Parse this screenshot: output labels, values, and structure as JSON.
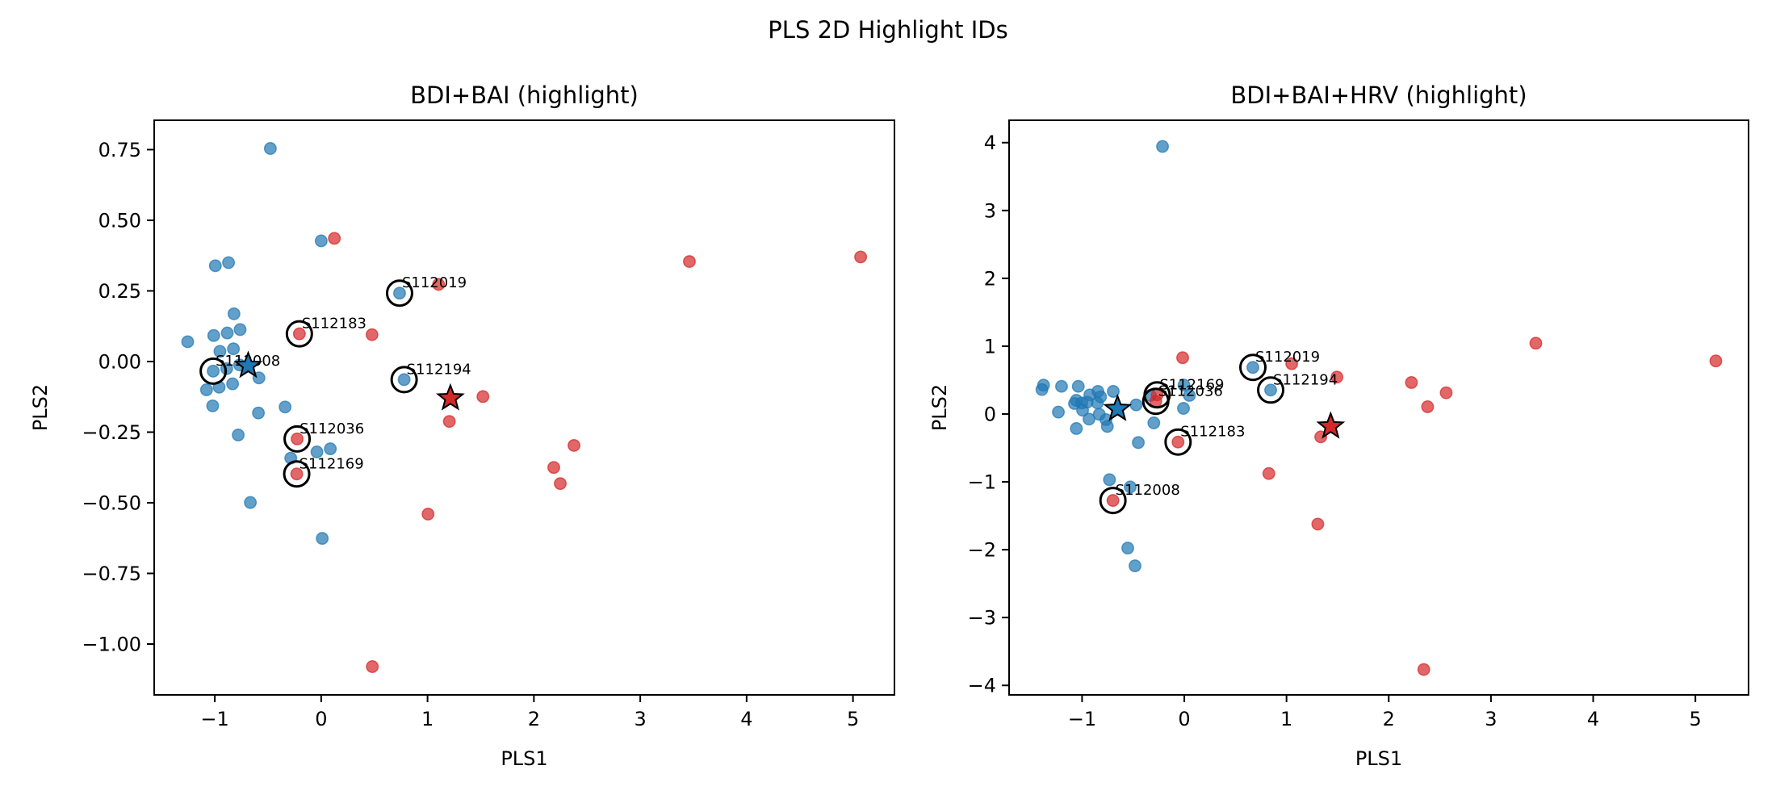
{
  "chart_data": {
    "suptitle": "PLS 2D Highlight IDs",
    "colors": {
      "group0": "#1f77b4",
      "group1": "#d62728",
      "highlight_ring": "#000000"
    },
    "panels": [
      {
        "type": "scatter",
        "title": "BDI+BAI (highlight)",
        "xlabel": "PLS1",
        "ylabel": "PLS2",
        "xlim": [
          -1.57,
          5.39
        ],
        "ylim": [
          -1.18,
          0.854
        ],
        "xticks": [
          -1,
          0,
          1,
          2,
          3,
          4,
          5
        ],
        "xtick_labels": [
          "−1",
          "0",
          "1",
          "2",
          "3",
          "4",
          "5"
        ],
        "yticks": [
          0.75,
          0.5,
          0.25,
          0.0,
          -0.25,
          -0.5,
          -0.75,
          -1.0
        ],
        "ytick_labels": [
          "0.75",
          "0.50",
          "0.25",
          "0.00",
          "−0.25",
          "−0.50",
          "−0.75",
          "−1.00"
        ],
        "grid": false,
        "series": [
          {
            "name": "group0",
            "color": "#1f77b4",
            "points": [
              [
                -0.478,
                0.754
              ],
              [
                0.0,
                0.427
              ],
              [
                -0.995,
                0.339
              ],
              [
                -0.871,
                0.35
              ],
              [
                -0.82,
                0.169
              ],
              [
                -1.01,
                0.092
              ],
              [
                -0.883,
                0.101
              ],
              [
                -0.762,
                0.113
              ],
              [
                -1.255,
                0.07
              ],
              [
                -0.952,
                0.036
              ],
              [
                -0.825,
                0.045
              ],
              [
                -1.015,
                -0.034
              ],
              [
                -0.888,
                -0.025
              ],
              [
                -0.767,
                -0.012
              ],
              [
                -0.585,
                -0.058
              ],
              [
                -0.833,
                -0.079
              ],
              [
                -1.078,
                -0.1
              ],
              [
                -0.959,
                -0.091
              ],
              [
                -1.02,
                -0.157
              ],
              [
                -0.59,
                -0.182
              ],
              [
                -0.339,
                -0.161
              ],
              [
                -0.78,
                -0.26
              ],
              [
                0.737,
                0.242
              ],
              [
                0.78,
                -0.064
              ],
              [
                -0.04,
                -0.32
              ],
              [
                0.086,
                -0.309
              ],
              [
                -0.286,
                -0.342
              ],
              [
                -0.666,
                -0.499
              ],
              [
                0.01,
                -0.626
              ]
            ]
          },
          {
            "name": "group1",
            "color": "#d62728",
            "points": [
              [
                0.124,
                0.436
              ],
              [
                -0.205,
                0.098
              ],
              [
                0.478,
                0.095
              ],
              [
                1.104,
                0.273
              ],
              [
                -0.226,
                -0.274
              ],
              [
                -0.23,
                -0.398
              ],
              [
                1.521,
                -0.124
              ],
              [
                1.205,
                -0.212
              ],
              [
                3.462,
                0.354
              ],
              [
                5.072,
                0.37
              ],
              [
                2.377,
                -0.297
              ],
              [
                2.187,
                -0.375
              ],
              [
                2.248,
                -0.432
              ],
              [
                1.005,
                -0.54
              ],
              [
                0.481,
                -1.08
              ]
            ]
          }
        ],
        "centroids": [
          {
            "name": "group0-centroid",
            "color": "#1f77b4",
            "x": -0.686,
            "y": -0.015
          },
          {
            "name": "group1-centroid",
            "color": "#d62728",
            "x": 1.215,
            "y": -0.13
          }
        ],
        "highlights": [
          {
            "id": "S112008",
            "x": -1.015,
            "y": -0.034
          },
          {
            "id": "S112183",
            "x": -0.205,
            "y": 0.098
          },
          {
            "id": "S112019",
            "x": 0.737,
            "y": 0.242
          },
          {
            "id": "S112194",
            "x": 0.78,
            "y": -0.064
          },
          {
            "id": "S112036",
            "x": -0.226,
            "y": -0.274
          },
          {
            "id": "S112169",
            "x": -0.23,
            "y": -0.398
          }
        ]
      },
      {
        "type": "scatter",
        "title": "BDI+BAI+HRV (highlight)",
        "xlabel": "PLS1",
        "ylabel": "PLS2",
        "xlim": [
          -1.714,
          5.52
        ],
        "ylim": [
          -4.14,
          4.33
        ],
        "xticks": [
          -1,
          0,
          1,
          2,
          3,
          4,
          5
        ],
        "xtick_labels": [
          "−1",
          "0",
          "1",
          "2",
          "3",
          "4",
          "5"
        ],
        "yticks": [
          4,
          3,
          2,
          1,
          0,
          -1,
          -2,
          -3,
          -4
        ],
        "ytick_labels": [
          "4",
          "3",
          "2",
          "1",
          "0",
          "−1",
          "−2",
          "−3",
          "−4"
        ],
        "grid": false,
        "series": [
          {
            "name": "group0",
            "color": "#1f77b4",
            "points": [
              [
                -0.213,
                3.944
              ],
              [
                -1.377,
                0.425
              ],
              [
                -1.393,
                0.361
              ],
              [
                -1.201,
                0.408
              ],
              [
                -1.037,
                0.408
              ],
              [
                -0.695,
                0.333
              ],
              [
                -0.845,
                0.333
              ],
              [
                -0.924,
                0.282
              ],
              [
                -0.819,
                0.254
              ],
              [
                -1.056,
                0.202
              ],
              [
                -0.95,
                0.175
              ],
              [
                -1.074,
                0.155
              ],
              [
                -1.003,
                0.163
              ],
              [
                -0.85,
                0.163
              ],
              [
                -0.995,
                0.056
              ],
              [
                -1.232,
                0.028
              ],
              [
                -0.832,
                -0.004
              ],
              [
                -0.932,
                -0.075
              ],
              [
                -0.766,
                -0.083
              ],
              [
                -0.753,
                -0.183
              ],
              [
                -1.056,
                -0.214
              ],
              [
                -0.471,
                0.135
              ],
              [
                -0.332,
                0.274
              ],
              [
                -0.003,
                0.425
              ],
              [
                0.05,
                0.274
              ],
              [
                -0.008,
                0.083
              ],
              [
                -0.298,
                -0.131
              ],
              [
                -0.45,
                -0.421
              ],
              [
                -0.732,
                -0.968
              ],
              [
                -0.529,
                -1.075
              ],
              [
                -0.553,
                -1.976
              ],
              [
                -0.482,
                -2.238
              ],
              [
                0.671,
                0.687
              ],
              [
                0.845,
                0.353
              ]
            ]
          },
          {
            "name": "group1",
            "color": "#d62728",
            "points": [
              [
                -0.016,
                0.83
              ],
              [
                -0.266,
                0.282
              ],
              [
                -0.279,
                0.187
              ],
              [
                -0.061,
                -0.413
              ],
              [
                -0.698,
                -1.274
              ],
              [
                1.051,
                0.742
              ],
              [
                1.493,
                0.544
              ],
              [
                1.335,
                -0.337
              ],
              [
                2.222,
                0.464
              ],
              [
                2.562,
                0.313
              ],
              [
                2.38,
                0.107
              ],
              [
                0.827,
                -0.877
              ],
              [
                1.306,
                -1.623
              ],
              [
                3.439,
                1.044
              ],
              [
                5.2,
                0.782
              ],
              [
                2.343,
                -3.766
              ]
            ]
          }
        ],
        "centroids": [
          {
            "name": "group0-centroid",
            "color": "#1f77b4",
            "x": -0.653,
            "y": 0.075
          },
          {
            "name": "group1-centroid",
            "color": "#d62728",
            "x": 1.432,
            "y": -0.183
          }
        ],
        "highlights": [
          {
            "id": "S112169",
            "x": -0.266,
            "y": 0.282
          },
          {
            "id": "S112036",
            "x": -0.279,
            "y": 0.187
          },
          {
            "id": "S112019",
            "x": 0.671,
            "y": 0.687
          },
          {
            "id": "S112194",
            "x": 0.845,
            "y": 0.353
          },
          {
            "id": "S112183",
            "x": -0.061,
            "y": -0.413
          },
          {
            "id": "S112008",
            "x": -0.698,
            "y": -1.274
          }
        ]
      }
    ]
  }
}
